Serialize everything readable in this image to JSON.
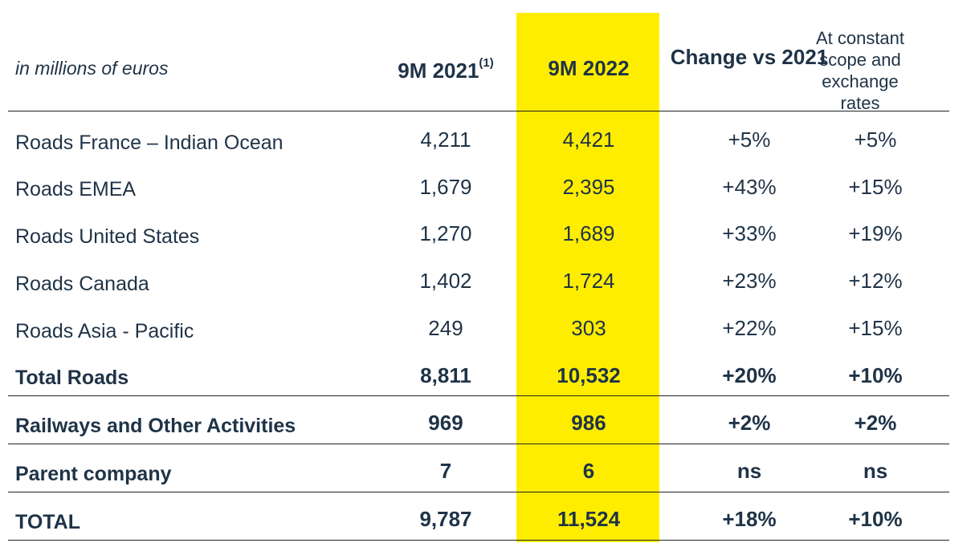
{
  "header": {
    "units": "in millions of euros",
    "col_prev": "9M 2021",
    "col_prev_note": "(1)",
    "col_curr": "9M 2022",
    "col_change": "Change vs 2021",
    "col_constant": "At constant scope and exchange rates"
  },
  "rows": [
    {
      "label": "Roads France – Indian Ocean",
      "prev": "4,211",
      "curr": "4,421",
      "change": "+5%",
      "constant": "+5%"
    },
    {
      "label": "Roads EMEA",
      "prev": "1,679",
      "curr": "2,395",
      "change": "+43%",
      "constant": "+15%"
    },
    {
      "label": "Roads United States",
      "prev": "1,270",
      "curr": "1,689",
      "change": "+33%",
      "constant": "+19%"
    },
    {
      "label": "Roads Canada",
      "prev": "1,402",
      "curr": "1,724",
      "change": "+23%",
      "constant": "+12%"
    },
    {
      "label": "Roads Asia - Pacific",
      "prev": "249",
      "curr": "303",
      "change": "+22%",
      "constant": "+15%"
    },
    {
      "label": "Total Roads",
      "prev": "8,811",
      "curr": "10,532",
      "change": "+20%",
      "constant": "+10%"
    },
    {
      "label": "Railways and Other Activities",
      "prev": "969",
      "curr": "986",
      "change": "+2%",
      "constant": "+2%"
    },
    {
      "label": "Parent company",
      "prev": "7",
      "curr": "6",
      "change": "ns",
      "constant": "ns"
    },
    {
      "label": "TOTAL",
      "prev": "9,787",
      "curr": "11,524",
      "change": "+18%",
      "constant": "+10%"
    }
  ],
  "colors": {
    "highlight": "#ffed00",
    "text": "#1f3347"
  }
}
